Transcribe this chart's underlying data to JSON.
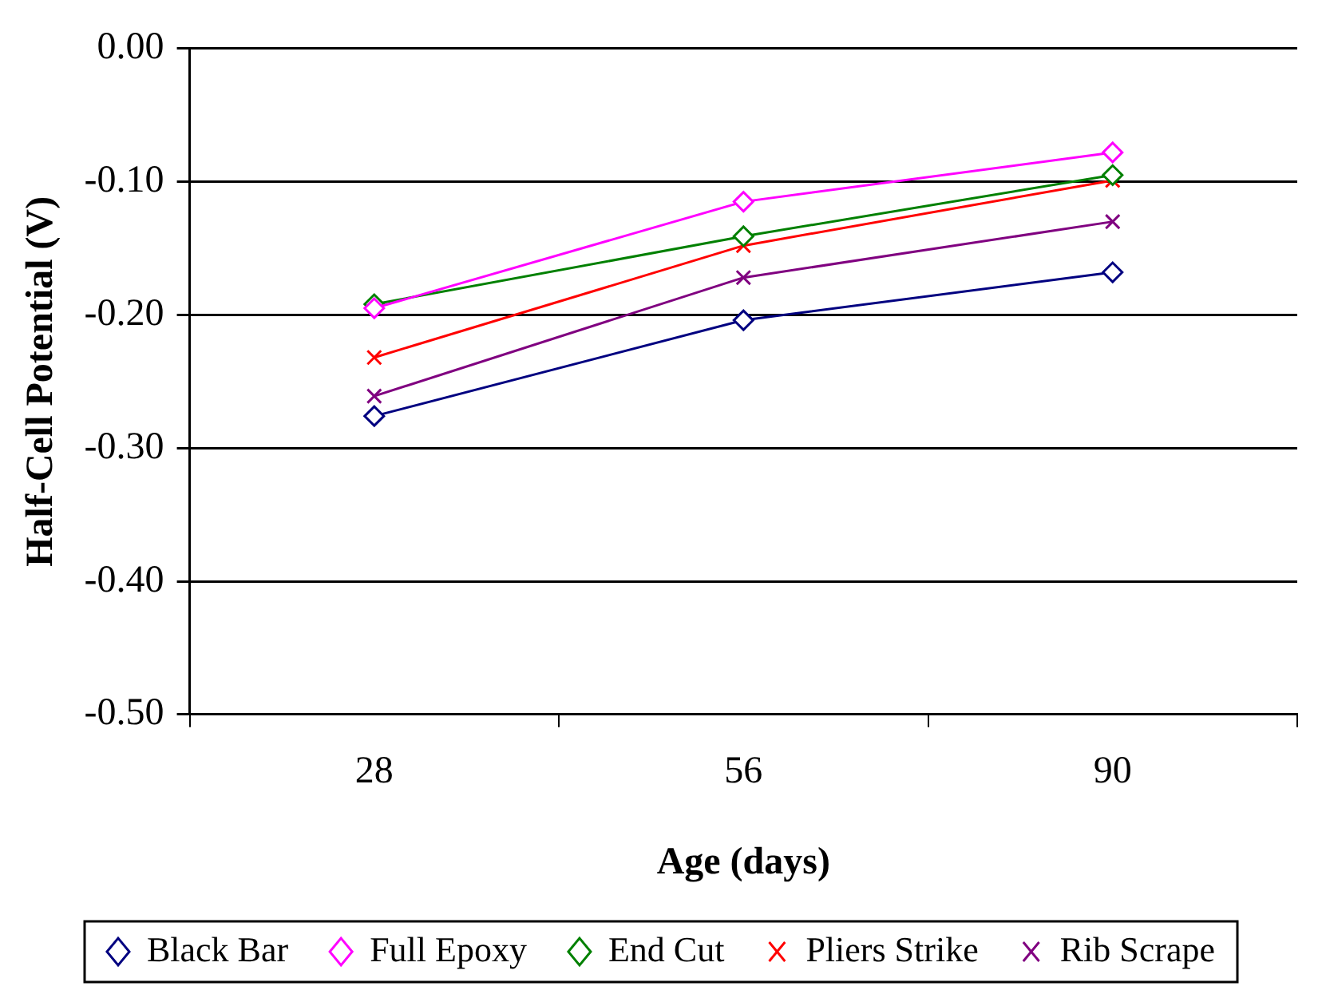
{
  "chart_data": {
    "type": "line",
    "xlabel": "Age (days)",
    "ylabel": "Half-Cell Potential (V)",
    "categories": [
      "28",
      "56",
      "90"
    ],
    "series": [
      {
        "name": "Black Bar",
        "color": "#000080",
        "marker": "diamond",
        "values": [
          -0.276,
          -0.204,
          -0.168
        ]
      },
      {
        "name": "Full Epoxy",
        "color": "#ff00ff",
        "marker": "diamond",
        "values": [
          -0.195,
          -0.115,
          -0.078
        ]
      },
      {
        "name": "End Cut",
        "color": "#008000",
        "marker": "diamond",
        "values": [
          -0.192,
          -0.141,
          -0.095
        ]
      },
      {
        "name": "Pliers Strike",
        "color": "#ff0000",
        "marker": "cross",
        "values": [
          -0.232,
          -0.148,
          -0.099
        ]
      },
      {
        "name": "Rib Scrape",
        "color": "#800080",
        "marker": "cross",
        "values": [
          -0.261,
          -0.172,
          -0.13
        ]
      }
    ],
    "ylim": [
      -0.5,
      0
    ],
    "yticks": [
      {
        "value": -0.5,
        "label": "-0.50"
      },
      {
        "value": -0.4,
        "label": "-0.40"
      },
      {
        "value": -0.3,
        "label": "-0.30"
      },
      {
        "value": -0.2,
        "label": "-0.20"
      },
      {
        "value": -0.1,
        "label": "-0.10"
      },
      {
        "value": 0,
        "label": "0.00"
      }
    ],
    "grid": "y",
    "legend": "bottom",
    "line_style": "solid"
  }
}
